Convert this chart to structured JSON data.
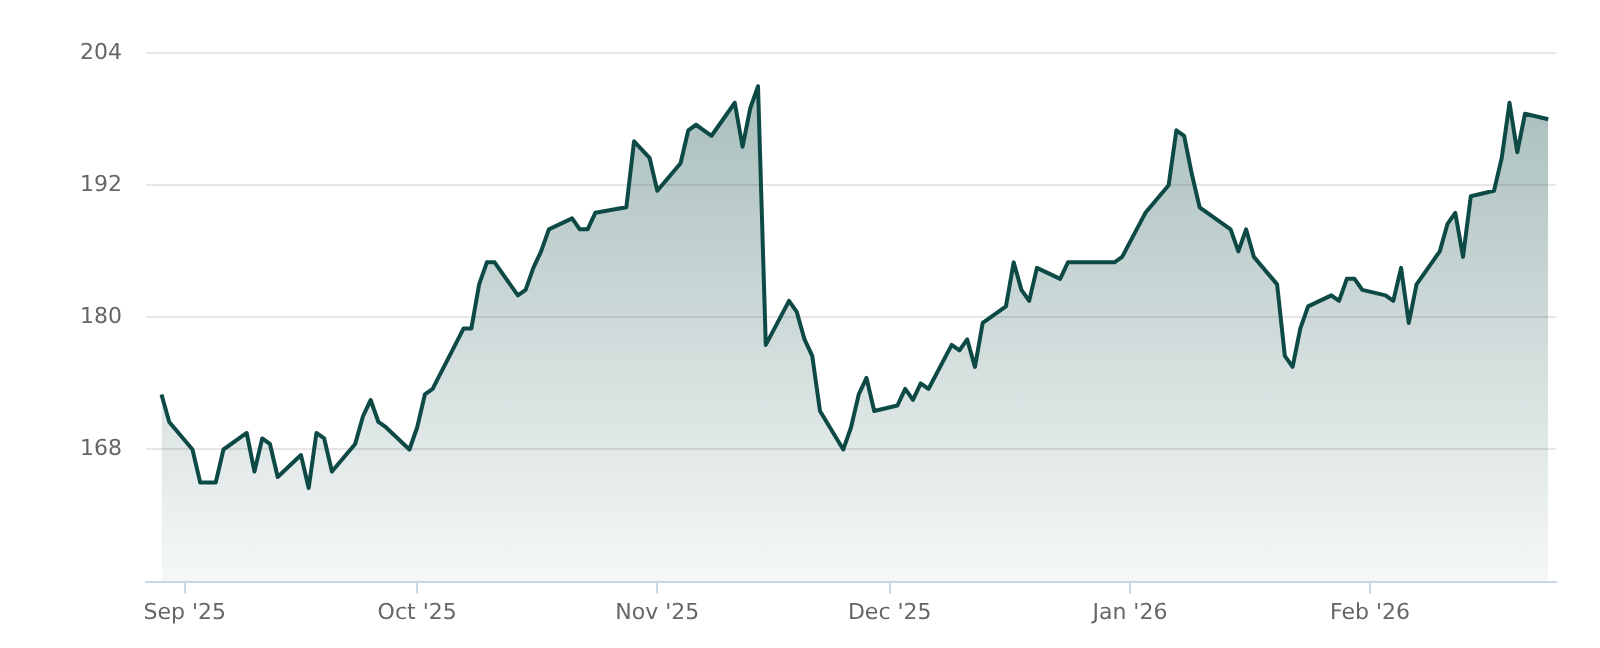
{
  "chart_data": {
    "type": "area",
    "x": [
      "2025-08-29",
      "2025-08-30",
      "2025-09-02",
      "2025-09-03",
      "2025-09-05",
      "2025-09-06",
      "2025-09-09",
      "2025-09-10",
      "2025-09-11",
      "2025-09-12",
      "2025-09-13",
      "2025-09-16",
      "2025-09-17",
      "2025-09-18",
      "2025-09-19",
      "2025-09-20",
      "2025-09-23",
      "2025-09-24",
      "2025-09-25",
      "2025-09-26",
      "2025-09-27",
      "2025-09-30",
      "2025-10-01",
      "2025-10-02",
      "2025-10-03",
      "2025-10-07",
      "2025-10-08",
      "2025-10-09",
      "2025-10-10",
      "2025-10-11",
      "2025-10-14",
      "2025-10-15",
      "2025-10-16",
      "2025-10-17",
      "2025-10-18",
      "2025-10-21",
      "2025-10-22",
      "2025-10-23",
      "2025-10-24",
      "2025-10-28",
      "2025-10-29",
      "2025-10-31",
      "2025-11-01",
      "2025-11-04",
      "2025-11-05",
      "2025-11-06",
      "2025-11-07",
      "2025-11-08",
      "2025-11-11",
      "2025-11-12",
      "2025-11-13",
      "2025-11-14",
      "2025-11-15",
      "2025-11-18",
      "2025-11-19",
      "2025-11-20",
      "2025-11-21",
      "2025-11-22",
      "2025-11-25",
      "2025-11-26",
      "2025-11-27",
      "2025-11-28",
      "2025-11-29",
      "2025-12-02",
      "2025-12-03",
      "2025-12-04",
      "2025-12-05",
      "2025-12-06",
      "2025-12-09",
      "2025-12-10",
      "2025-12-11",
      "2025-12-12",
      "2025-12-13",
      "2025-12-16",
      "2025-12-17",
      "2025-12-18",
      "2025-12-19",
      "2025-12-20",
      "2025-12-23",
      "2025-12-24",
      "2025-12-30",
      "2025-12-31",
      "2026-01-03",
      "2026-01-06",
      "2026-01-07",
      "2026-01-08",
      "2026-01-09",
      "2026-01-10",
      "2026-01-13",
      "2026-01-14",
      "2026-01-15",
      "2026-01-16",
      "2026-01-17",
      "2026-01-20",
      "2026-01-21",
      "2026-01-22",
      "2026-01-23",
      "2026-01-24",
      "2026-01-27",
      "2026-01-28",
      "2026-01-29",
      "2026-01-30",
      "2026-01-31",
      "2026-02-03",
      "2026-02-04",
      "2026-02-05",
      "2026-02-06",
      "2026-02-07",
      "2026-02-10",
      "2026-02-11",
      "2026-02-12",
      "2026-02-13",
      "2026-02-14",
      "2026-02-17",
      "2026-02-18",
      "2026-02-19",
      "2026-02-20",
      "2026-02-21",
      "2026-02-24"
    ],
    "series": [
      {
        "color": "#0e4a45",
        "values": [
          173,
          170.5,
          168,
          165,
          165,
          168,
          169.5,
          166,
          169,
          168.5,
          165.5,
          167.5,
          164.5,
          169.5,
          169,
          166,
          168.5,
          171,
          172.5,
          170.5,
          170,
          168,
          170,
          173,
          173.5,
          179,
          179,
          183,
          185,
          185,
          182,
          182.5,
          184.5,
          186,
          188,
          189,
          188,
          188,
          189.5,
          190,
          196,
          194.5,
          191.5,
          194,
          197,
          197.5,
          197,
          196.5,
          199.5,
          195.5,
          199,
          201,
          177.5,
          181.5,
          180.5,
          178,
          176.5,
          171.5,
          168,
          170,
          173,
          174.5,
          171.5,
          172,
          173.5,
          172.5,
          174,
          173.5,
          177.5,
          177,
          178,
          175.5,
          179.5,
          181,
          185,
          182.5,
          181.5,
          184.5,
          183.5,
          185,
          185,
          185.5,
          189.5,
          192,
          197,
          196.5,
          193,
          190,
          188.5,
          188,
          186,
          188,
          185.5,
          183,
          176.5,
          175.5,
          179,
          181,
          182,
          181.5,
          183.5,
          183.5,
          182.5,
          182,
          181.5,
          184.5,
          179.5,
          183,
          186,
          188.5,
          189.5,
          185.5,
          191,
          191.5,
          194.5,
          199.5,
          195,
          198.5,
          198
        ]
      }
    ],
    "xlim": [
      "2025-08-27",
      "2026-02-25"
    ],
    "xticks": [
      {
        "value": "2025-09-01",
        "label": "Sep '25"
      },
      {
        "value": "2025-10-01",
        "label": "Oct '25"
      },
      {
        "value": "2025-11-01",
        "label": "Nov '25"
      },
      {
        "value": "2025-12-01",
        "label": "Dec '25"
      },
      {
        "value": "2026-01-01",
        "label": "Jan '26"
      },
      {
        "value": "2026-02-01",
        "label": "Feb '26"
      }
    ],
    "ylim": [
      156,
      204
    ],
    "yticks": [
      168,
      180,
      192,
      204
    ],
    "grid": "y",
    "marker": "none",
    "line_style": "solid"
  }
}
